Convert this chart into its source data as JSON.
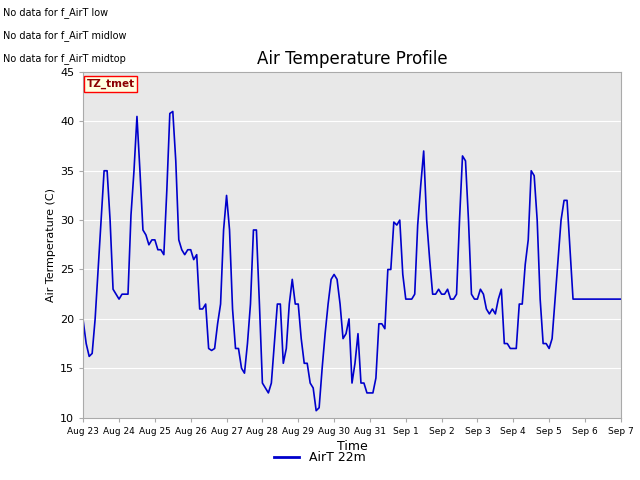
{
  "title": "Air Temperature Profile",
  "xlabel": "Time",
  "ylabel": "Air Termperature (C)",
  "ylim": [
    10,
    45
  ],
  "background_color": "#ffffff",
  "plot_bg_color": "#e8e8e8",
  "line_color": "#0000cc",
  "line_width": 1.2,
  "legend_label": "AirT 22m",
  "legend_line_color": "#0000cc",
  "annotations": [
    "No data for f_AirT low",
    "No data for f_AirT midlow",
    "No data for f_AirT midtop"
  ],
  "tz_label": "TZ_tmet",
  "x_tick_labels": [
    "Aug 23",
    "Aug 24",
    "Aug 25",
    "Aug 26",
    "Aug 27",
    "Aug 28",
    "Aug 29",
    "Aug 30",
    "Aug 31",
    "Sep 1",
    "Sep 2",
    "Sep 3",
    "Sep 4",
    "Sep 5",
    "Sep 6",
    "Sep 7"
  ],
  "data_x": [
    0.0,
    0.083,
    0.167,
    0.25,
    0.333,
    0.417,
    0.5,
    0.583,
    0.667,
    0.75,
    0.833,
    0.917,
    1.0,
    1.083,
    1.167,
    1.25,
    1.333,
    1.417,
    1.5,
    1.583,
    1.667,
    1.75,
    1.833,
    1.917,
    2.0,
    2.083,
    2.167,
    2.25,
    2.333,
    2.417,
    2.5,
    2.583,
    2.667,
    2.75,
    2.833,
    2.917,
    3.0,
    3.083,
    3.167,
    3.25,
    3.333,
    3.417,
    3.5,
    3.583,
    3.667,
    3.75,
    3.833,
    3.917,
    4.0,
    4.083,
    4.167,
    4.25,
    4.333,
    4.417,
    4.5,
    4.583,
    4.667,
    4.75,
    4.833,
    4.917,
    5.0,
    5.083,
    5.167,
    5.25,
    5.333,
    5.417,
    5.5,
    5.583,
    5.667,
    5.75,
    5.833,
    5.917,
    6.0,
    6.083,
    6.167,
    6.25,
    6.333,
    6.417,
    6.5,
    6.583,
    6.667,
    6.75,
    6.833,
    6.917,
    7.0,
    7.083,
    7.167,
    7.25,
    7.333,
    7.417,
    7.5,
    7.583,
    7.667,
    7.75,
    7.833,
    7.917,
    8.0,
    8.083,
    8.167,
    8.25,
    8.333,
    8.417,
    8.5,
    8.583,
    8.667,
    8.75,
    8.833,
    8.917,
    9.0,
    9.083,
    9.167,
    9.25,
    9.333,
    9.417,
    9.5,
    9.583,
    9.667,
    9.75,
    9.833,
    9.917,
    10.0,
    10.083,
    10.167,
    10.25,
    10.333,
    10.417,
    10.5,
    10.583,
    10.667,
    10.75,
    10.833,
    10.917,
    11.0,
    11.083,
    11.167,
    11.25,
    11.333,
    11.417,
    11.5,
    11.583,
    11.667,
    11.75,
    11.833,
    11.917,
    12.0,
    12.083,
    12.167,
    12.25,
    12.333,
    12.417,
    12.5,
    12.583,
    12.667,
    12.75,
    12.833,
    12.917,
    13.0,
    13.083,
    13.167,
    13.25,
    13.333,
    13.417,
    13.5,
    13.583,
    13.667,
    13.75,
    13.833,
    13.917,
    14.0,
    14.083,
    14.167,
    14.25,
    14.333,
    14.417,
    14.5,
    14.583,
    14.667,
    14.75,
    14.833,
    14.917,
    15.0
  ],
  "data_y": [
    19.8,
    17.5,
    16.2,
    16.5,
    20.0,
    25.0,
    30.0,
    35.0,
    35.0,
    30.0,
    23.0,
    22.5,
    22.0,
    22.5,
    22.5,
    22.5,
    30.5,
    35.0,
    40.5,
    35.0,
    29.0,
    28.5,
    27.5,
    28.0,
    28.0,
    27.0,
    27.0,
    26.5,
    33.0,
    40.8,
    41.0,
    36.0,
    28.0,
    27.0,
    26.5,
    27.0,
    27.0,
    26.0,
    26.5,
    21.0,
    21.0,
    21.5,
    17.0,
    16.8,
    17.0,
    19.5,
    21.5,
    29.0,
    32.5,
    29.0,
    21.0,
    17.0,
    17.0,
    15.0,
    14.5,
    17.5,
    21.5,
    29.0,
    29.0,
    21.5,
    13.5,
    13.0,
    12.5,
    13.5,
    17.5,
    21.5,
    21.5,
    15.5,
    17.0,
    21.5,
    24.0,
    21.5,
    21.5,
    18.0,
    15.5,
    15.5,
    13.5,
    13.0,
    10.7,
    11.0,
    15.0,
    18.5,
    21.5,
    24.0,
    24.5,
    24.0,
    21.5,
    18.0,
    18.5,
    20.0,
    13.5,
    15.5,
    18.5,
    13.5,
    13.5,
    12.5,
    12.5,
    12.5,
    14.0,
    19.5,
    19.5,
    19.0,
    25.0,
    25.0,
    29.8,
    29.5,
    30.0,
    24.5,
    22.0,
    22.0,
    22.0,
    22.5,
    29.5,
    33.5,
    37.0,
    30.0,
    26.0,
    22.5,
    22.5,
    23.0,
    22.5,
    22.5,
    23.0,
    22.0,
    22.0,
    22.5,
    30.0,
    36.5,
    36.0,
    30.0,
    22.5,
    22.0,
    22.0,
    23.0,
    22.5,
    21.0,
    20.5,
    21.0,
    20.5,
    22.0,
    23.0,
    17.5,
    17.5,
    17.0,
    17.0,
    17.0,
    21.5,
    21.5,
    25.5,
    28.0,
    35.0,
    34.5,
    30.0,
    22.0,
    17.5,
    17.5,
    17.0,
    18.0,
    22.0,
    26.0,
    30.0,
    32.0,
    32.0,
    27.0,
    22.0,
    22.0,
    22.0,
    22.0,
    22.0,
    22.0,
    22.0,
    22.0,
    22.0,
    22.0,
    22.0,
    22.0,
    22.0,
    22.0,
    22.0,
    22.0,
    22.0
  ]
}
